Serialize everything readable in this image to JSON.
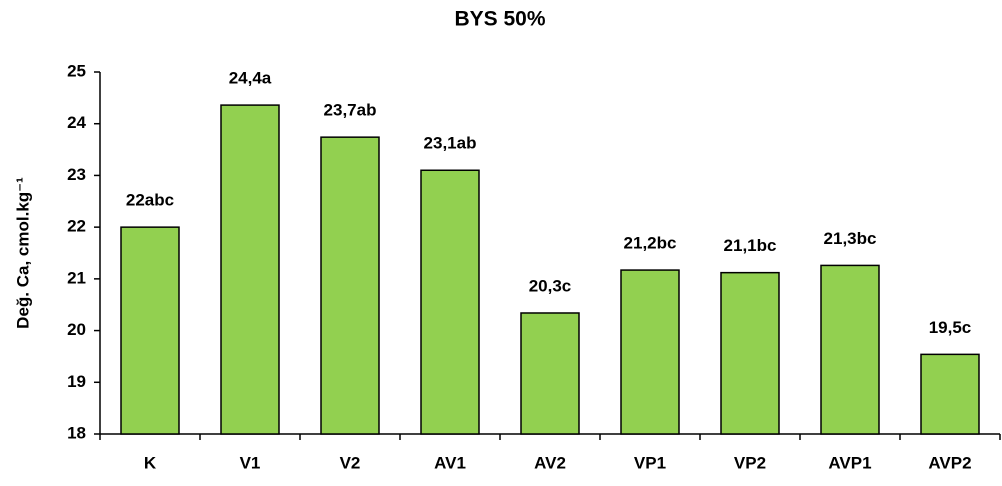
{
  "chart_data": {
    "type": "bar",
    "title": "BYS 50%",
    "y_label": "Değ. Ca, cmol.kg⁻¹",
    "categories": [
      "K",
      "V1",
      "V2",
      "AV1",
      "AV2",
      "VP1",
      "VP2",
      "AVP1",
      "AVP2"
    ],
    "values": [
      22,
      24.36,
      23.74,
      23.1,
      20.34,
      21.17,
      21.12,
      21.26,
      19.54
    ],
    "value_labels": [
      "22abc",
      "24,4a",
      "23,7ab",
      "23,1ab",
      "20,3c",
      "21,2bc",
      "21,1bc",
      "21,3bc",
      "19,5c"
    ],
    "color": "#92d050",
    "ylim": [
      18,
      25
    ],
    "yticks": [
      18,
      19,
      20,
      21,
      22,
      23,
      24,
      25
    ],
    "grid": false
  }
}
